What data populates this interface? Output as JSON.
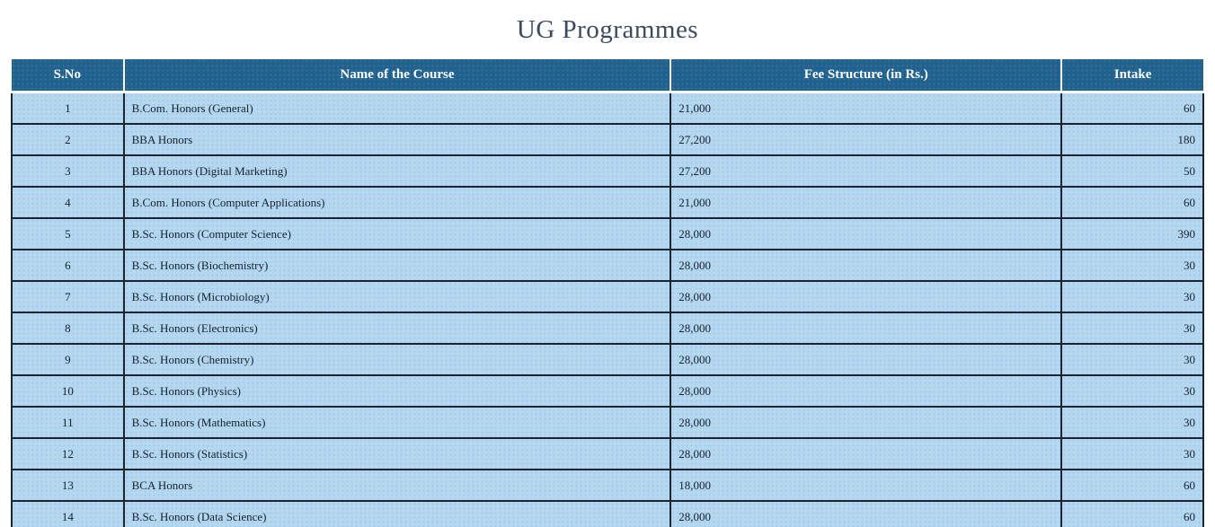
{
  "title": "UG Programmes",
  "table": {
    "columns": [
      "S.No",
      "Name of the Course",
      "Fee Structure (in Rs.)",
      "Intake"
    ],
    "rows": [
      {
        "sno": "1",
        "course": "B.Com. Honors (General)",
        "fee": "21,000",
        "intake": "60"
      },
      {
        "sno": "2",
        "course": "BBA Honors",
        "fee": "27,200",
        "intake": "180"
      },
      {
        "sno": "3",
        "course": "BBA Honors (Digital Marketing)",
        "fee": "27,200",
        "intake": "50"
      },
      {
        "sno": "4",
        "course": "B.Com. Honors (Computer Applications)",
        "fee": "21,000",
        "intake": "60"
      },
      {
        "sno": "5",
        "course": "B.Sc. Honors (Computer Science)",
        "fee": "28,000",
        "intake": "390"
      },
      {
        "sno": "6",
        "course": "B.Sc. Honors (Biochemistry)",
        "fee": "28,000",
        "intake": "30"
      },
      {
        "sno": "7",
        "course": "B.Sc. Honors (Microbiology)",
        "fee": "28,000",
        "intake": "30"
      },
      {
        "sno": "8",
        "course": "B.Sc. Honors (Electronics)",
        "fee": "28,000",
        "intake": "30"
      },
      {
        "sno": "9",
        "course": "B.Sc. Honors (Chemistry)",
        "fee": "28,000",
        "intake": "30"
      },
      {
        "sno": "10",
        "course": "B.Sc. Honors (Physics)",
        "fee": "28,000",
        "intake": "30"
      },
      {
        "sno": "11",
        "course": "B.Sc. Honors (Mathematics)",
        "fee": "28,000",
        "intake": "30"
      },
      {
        "sno": "12",
        "course": "B.Sc. Honors (Statistics)",
        "fee": "28,000",
        "intake": "30"
      },
      {
        "sno": "13",
        "course": "BCA Honors",
        "fee": "18,000",
        "intake": "60"
      },
      {
        "sno": "14",
        "course": "B.Sc. Honors (Data Science)",
        "fee": "28,000",
        "intake": "60"
      }
    ]
  },
  "colors": {
    "header_bg": "#20618E",
    "row_bg": "#B5D8F1",
    "border": "#1B2430",
    "title_text": "#3C4A5E",
    "header_text": "#FFFFFF",
    "cell_text": "#16202E"
  }
}
